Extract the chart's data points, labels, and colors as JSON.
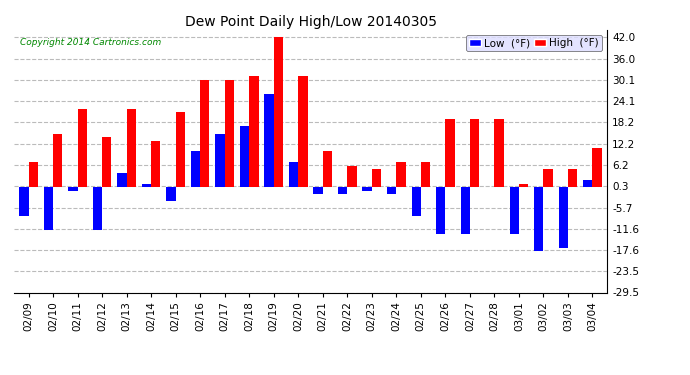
{
  "title": "Dew Point Daily High/Low 20140305",
  "copyright": "Copyright 2014 Cartronics.com",
  "dates": [
    "02/09",
    "02/10",
    "02/11",
    "02/12",
    "02/13",
    "02/14",
    "02/15",
    "02/16",
    "02/17",
    "02/18",
    "02/19",
    "02/20",
    "02/21",
    "02/22",
    "02/23",
    "02/24",
    "02/25",
    "02/26",
    "02/27",
    "02/28",
    "03/01",
    "03/02",
    "03/03",
    "03/04"
  ],
  "high": [
    7.0,
    15.0,
    22.0,
    14.0,
    22.0,
    13.0,
    21.0,
    30.0,
    30.0,
    31.0,
    42.0,
    31.0,
    10.0,
    6.0,
    5.0,
    7.0,
    7.0,
    19.0,
    19.0,
    19.0,
    1.0,
    5.0,
    5.0,
    11.0
  ],
  "low": [
    -8.0,
    -12.0,
    -1.0,
    -12.0,
    4.0,
    1.0,
    -4.0,
    10.0,
    15.0,
    17.0,
    26.0,
    7.0,
    -2.0,
    -2.0,
    -1.0,
    -2.0,
    -8.0,
    -13.0,
    -13.0,
    0.0,
    -13.0,
    -18.0,
    -17.0,
    2.0
  ],
  "high_color": "#ff0000",
  "low_color": "#0000ff",
  "bg_color": "#ffffff",
  "grid_color": "#bbbbbb",
  "ylim": [
    -29.5,
    44.0
  ],
  "yticks": [
    42.0,
    36.0,
    30.1,
    24.1,
    18.2,
    12.2,
    6.2,
    0.3,
    -5.7,
    -11.6,
    -17.6,
    -23.5,
    -29.5
  ],
  "bar_width": 0.38,
  "legend_bg_blue": "#0000ff",
  "legend_bg_red": "#ff0000"
}
